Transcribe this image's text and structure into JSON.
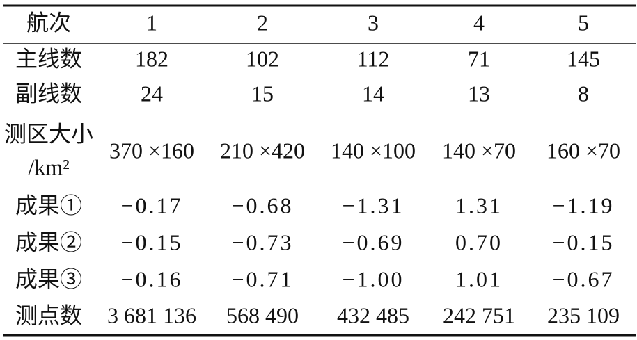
{
  "table": {
    "header": [
      "航次",
      "1",
      "2",
      "3",
      "4",
      "5"
    ],
    "rows": [
      {
        "label": [
          "主线数"
        ],
        "cells": [
          "182",
          "102",
          "112",
          "71",
          "145"
        ]
      },
      {
        "label": [
          "副线数"
        ],
        "cells": [
          "24",
          "15",
          "14",
          "13",
          "8"
        ]
      },
      {
        "label": [
          "测区大小",
          "/km²"
        ],
        "cells": [
          "370 ×160",
          "210 ×420",
          "140 ×100",
          "140 ×70",
          "160 ×70"
        ]
      },
      {
        "label": [
          "成果①"
        ],
        "cells": [
          "−0.17",
          "−0.68",
          "−1.31",
          "1.31",
          "−1.19"
        ]
      },
      {
        "label": [
          "成果②"
        ],
        "cells": [
          "−0.15",
          "−0.73",
          "−0.69",
          "0.70",
          "−0.15"
        ]
      },
      {
        "label": [
          "成果③"
        ],
        "cells": [
          "−0.16",
          "−0.71",
          "−1.00",
          "1.01",
          "−0.67"
        ]
      },
      {
        "label": [
          "测点数"
        ],
        "cells": [
          "3 681 136",
          "568 490",
          "432 485",
          "242 751",
          "235 109"
        ]
      }
    ]
  }
}
